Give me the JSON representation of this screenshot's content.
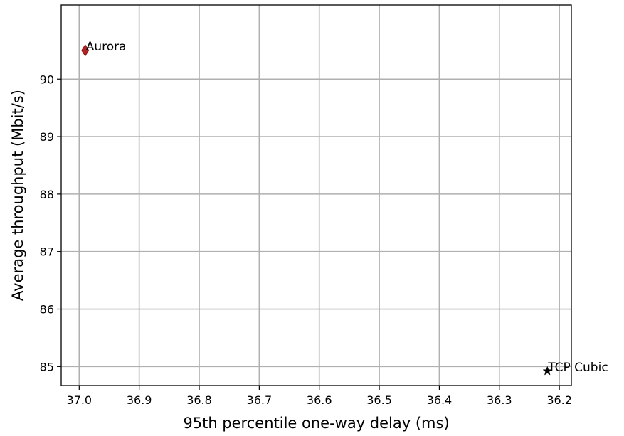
{
  "chart_data": {
    "type": "scatter",
    "xlabel": "95th percentile one-way delay (ms)",
    "ylabel": "Average throughput (Mbit/s)",
    "x_inverted": true,
    "xlim": [
      37.03,
      36.18
    ],
    "ylim": [
      84.67,
      91.29
    ],
    "x_ticks": [
      37.0,
      36.9,
      36.8,
      36.7,
      36.6,
      36.5,
      36.4,
      36.3,
      36.2
    ],
    "x_tick_labels": [
      "37.0",
      "36.9",
      "36.8",
      "36.7",
      "36.6",
      "36.5",
      "36.4",
      "36.3",
      "36.2"
    ],
    "y_ticks": [
      85,
      86,
      87,
      88,
      89,
      90
    ],
    "y_tick_labels": [
      "85",
      "86",
      "87",
      "88",
      "89",
      "90"
    ],
    "grid": true,
    "legend": "none",
    "points": [
      {
        "label": "Aurora",
        "x": 36.99,
        "y": 90.5,
        "marker": "diamond",
        "color": "#b22222"
      },
      {
        "label": "TCP Cubic",
        "x": 36.22,
        "y": 84.92,
        "marker": "star",
        "color": "#000000"
      }
    ]
  }
}
